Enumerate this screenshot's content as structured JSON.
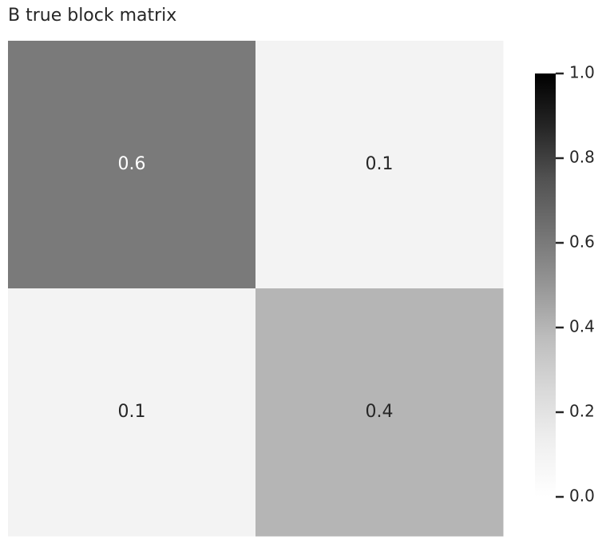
{
  "chart_data": {
    "type": "heatmap",
    "title": "B true block matrix",
    "values": [
      [
        0.6,
        0.1
      ],
      [
        0.1,
        0.4
      ]
    ],
    "cmap": "Greys",
    "vlim": [
      0,
      1
    ],
    "colorbar_ticks": [
      {
        "value": 0,
        "label": "0.0"
      },
      0.2,
      0.4,
      0.6,
      0.8,
      {
        "value": 1,
        "label": "1.0"
      }
    ]
  }
}
